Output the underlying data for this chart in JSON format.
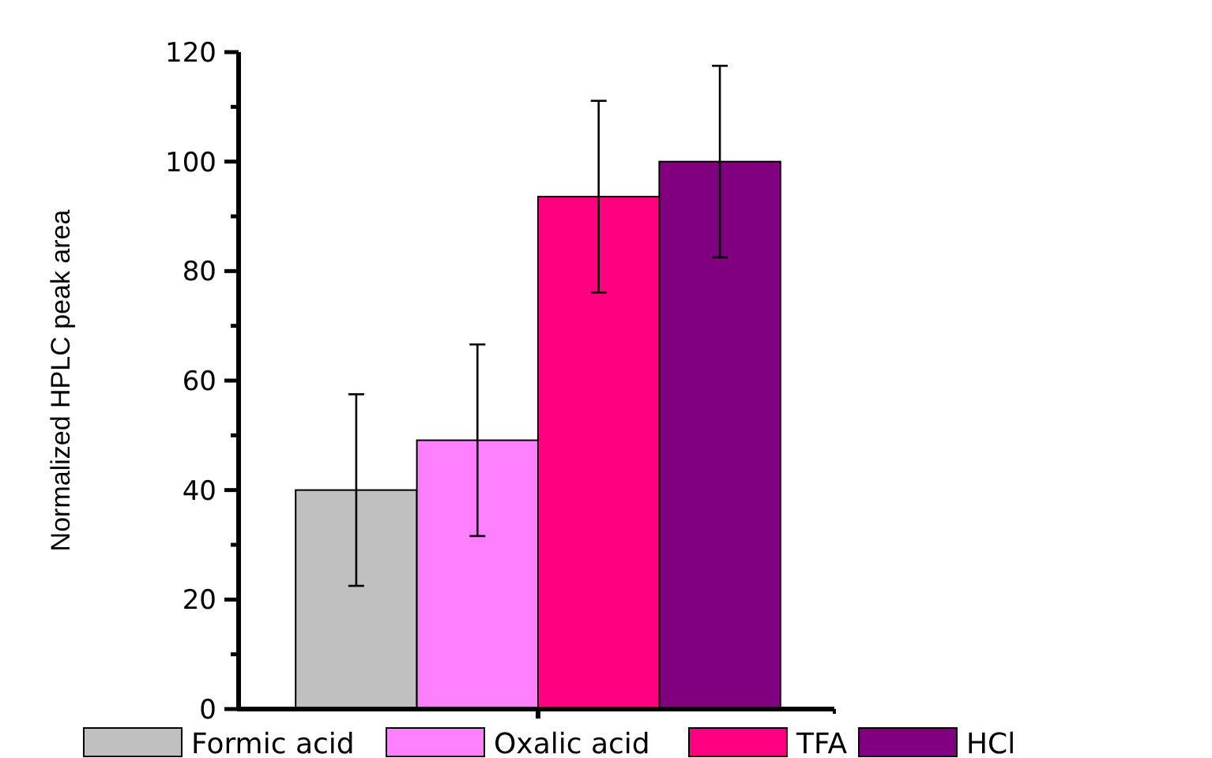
{
  "chart_data": {
    "type": "bar",
    "ylabel": "Normalized HPLC peak area",
    "categories": [
      null
    ],
    "series": [
      {
        "name": "Formic acid",
        "color": "#c0c0c0",
        "values": [
          40
        ],
        "errors": [
          17.5
        ]
      },
      {
        "name": "Oxalic acid",
        "color": "#ff80ff",
        "values": [
          49.1
        ],
        "errors": [
          17.5
        ]
      },
      {
        "name": "TFA",
        "color": "#ff0080",
        "values": [
          93.6
        ],
        "errors": [
          17.5
        ]
      },
      {
        "name": "HCl",
        "color": "#800080",
        "values": [
          100
        ],
        "errors": [
          17.5
        ]
      }
    ],
    "ylim": [
      0,
      120
    ],
    "yticks": [
      0,
      {
        "value": 10,
        "label": null
      },
      20,
      {
        "value": 30,
        "label": null
      },
      40,
      {
        "value": 50,
        "label": null
      },
      60,
      {
        "value": 70,
        "label": null
      },
      80,
      {
        "value": 90,
        "label": null
      },
      100,
      {
        "value": 110,
        "label": null
      },
      120
    ],
    "legend": "bottom",
    "grid": false
  }
}
